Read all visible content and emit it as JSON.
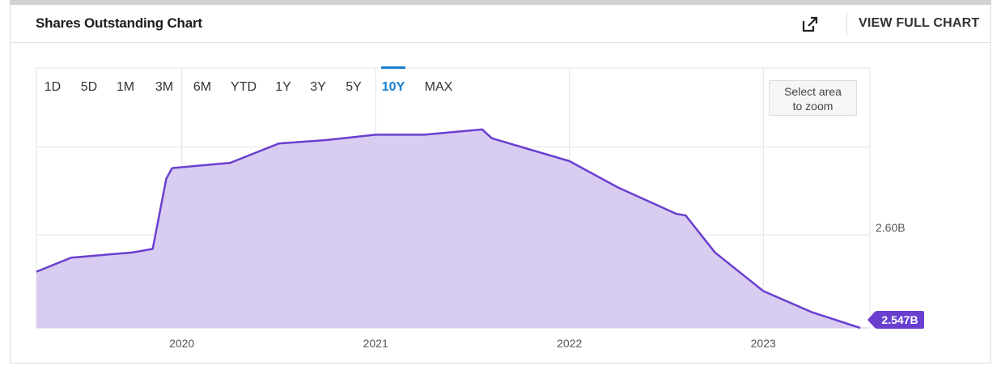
{
  "header": {
    "title": "Shares Outstanding Chart",
    "view_full_label": "VIEW FULL CHART",
    "external_icon": "external-link-icon"
  },
  "range_tabs": [
    "1D",
    "5D",
    "1M",
    "3M",
    "6M",
    "YTD",
    "1Y",
    "3Y",
    "5Y",
    "10Y",
    "MAX"
  ],
  "active_range": "10Y",
  "zoom_button": {
    "line1": "Select area",
    "line2": "to zoom"
  },
  "colors": {
    "line": "#6a3fd0",
    "fill": "#d8ccf1",
    "accent": "#1a7fd0",
    "badge": "#6a3fd0"
  },
  "chart_data": {
    "type": "area",
    "title": "",
    "xlabel": "",
    "ylabel": "",
    "x_ticks": [
      "2020",
      "2021",
      "2022",
      "2023"
    ],
    "y_ticks": [
      "2.60B"
    ],
    "last_value_label": "2.547B",
    "grid": true,
    "series": [
      {
        "x": [
          2019.25,
          2019.43,
          2019.75,
          2019.85,
          2019.92,
          2019.95,
          2020.25,
          2020.5,
          2020.75,
          2021.0,
          2021.25,
          2021.55,
          2021.6,
          2022.0,
          2022.25,
          2022.55,
          2022.6,
          2022.75,
          2023.0,
          2023.25,
          2023.5
        ],
        "y": [
          2.579,
          2.587,
          2.59,
          2.592,
          2.632,
          2.638,
          2.641,
          2.652,
          2.654,
          2.657,
          2.657,
          2.66,
          2.655,
          2.642,
          2.627,
          2.612,
          2.611,
          2.59,
          2.568,
          2.556,
          2.547
        ]
      }
    ],
    "xlim": [
      2019.25,
      2023.55
    ],
    "ylim": [
      2.547,
      2.695
    ]
  }
}
